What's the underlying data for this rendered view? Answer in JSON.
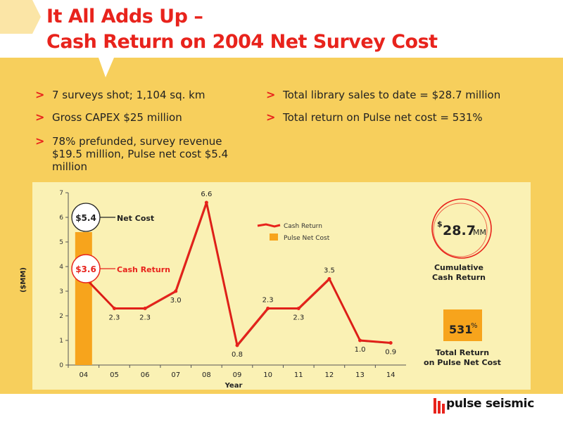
{
  "slide": {
    "title_line1": "It All Adds Up –",
    "title_line2": "Cash Return on 2004 Net Survey Cost",
    "bullets_left": [
      "7 surveys shot; 1,104 sq. km",
      "Gross CAPEX $25 million",
      "78% prefunded, survey revenue $19.5 million, Pulse net cost $5.4 million"
    ],
    "bullets_right": [
      "Total library sales to date = $28.7 million",
      "Total return on Pulse net cost = 531%"
    ],
    "brand": "pulse seismic",
    "colors": {
      "background": "#f7cf5c",
      "panel": "#faf1b4",
      "accent_red": "#e8231c",
      "bar_orange": "#f7a41c"
    }
  },
  "chart_data": {
    "type": "bar+line",
    "categories": [
      "04",
      "05",
      "06",
      "07",
      "08",
      "09",
      "10",
      "11",
      "12",
      "13",
      "14"
    ],
    "series": [
      {
        "name": "Cash Return",
        "type": "line",
        "values": [
          3.6,
          2.3,
          2.3,
          3.0,
          6.6,
          0.8,
          2.3,
          2.3,
          3.5,
          1.0,
          0.9
        ]
      },
      {
        "name": "Pulse Net Cost",
        "type": "bar",
        "values": [
          5.4,
          null,
          null,
          null,
          null,
          null,
          null,
          null,
          null,
          null,
          null
        ]
      }
    ],
    "data_labels": [
      "",
      "2.3",
      "2.3",
      "3.0",
      "6.6",
      "0.8",
      "2.3",
      "2.3",
      "3.5",
      "1.0",
      "0.9"
    ],
    "yticks": [
      "0",
      "1",
      "2",
      "3",
      "4",
      "5",
      "6",
      "7"
    ],
    "ylim": [
      0,
      7
    ],
    "xlabel": "Year",
    "ylabel": "($MM)",
    "legend_position": "top-center",
    "annotations": {
      "net_cost_value": "$5.4",
      "net_cost_label": "Net Cost",
      "cash_return_value": "$3.6",
      "cash_return_label": "Cash Return"
    },
    "callouts": {
      "cumulative_value_prefix": "$",
      "cumulative_value": "28.7",
      "cumulative_unit": "MM",
      "cumulative_label_line1": "Cumulative",
      "cumulative_label_line2": "Cash Return",
      "total_return_value": "531",
      "total_return_unit": "%",
      "total_return_label_line1": "Total Return",
      "total_return_label_line2": "on Pulse Net Cost"
    }
  }
}
